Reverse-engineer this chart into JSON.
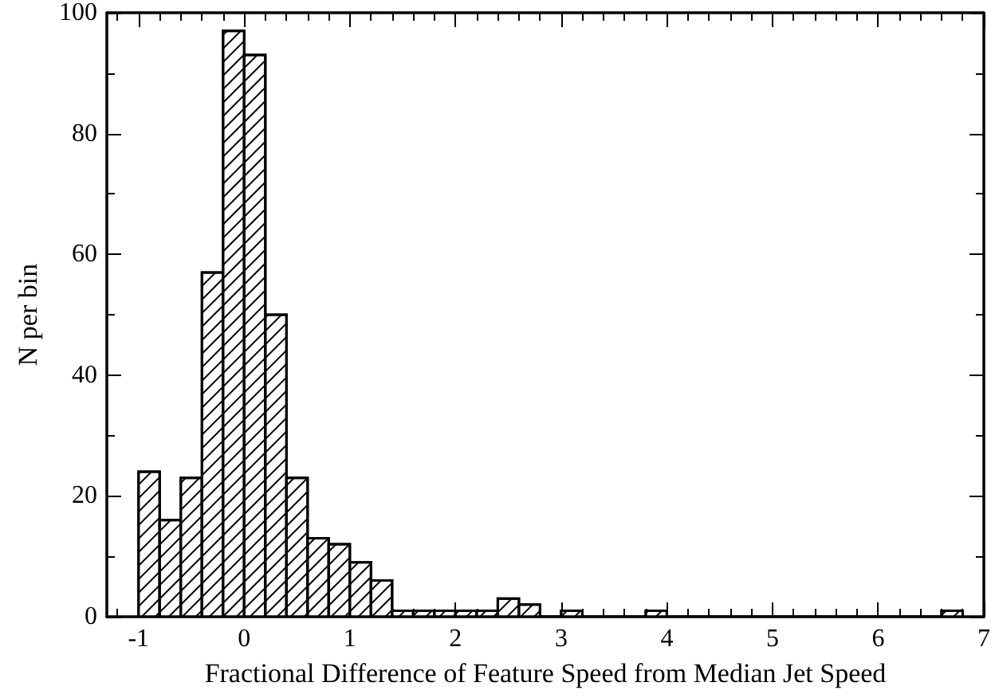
{
  "chart_data": {
    "type": "histogram",
    "xlabel": "Fractional Difference of Feature Speed from Median Jet Speed",
    "ylabel": "N per bin",
    "color": "#000000",
    "bins": [
      -1,
      -0.8,
      -0.6,
      -0.4,
      -0.2,
      0,
      0.2,
      0.4,
      0.6,
      0.8,
      1,
      1.2,
      1.4,
      1.6,
      1.8,
      2,
      2.2,
      2.4,
      2.6,
      2.8,
      3,
      3.2,
      3.4,
      3.6,
      3.8,
      4,
      4.2,
      4.4,
      4.6,
      4.8,
      5,
      5.2,
      5.4,
      5.6,
      5.8,
      6,
      6.2,
      6.4,
      6.6,
      6.8
    ],
    "values": [
      24,
      16,
      23,
      57,
      97,
      93,
      50,
      23,
      13,
      12,
      9,
      6,
      1,
      1,
      1,
      1,
      1,
      3,
      2,
      0,
      1,
      0,
      0,
      0,
      1,
      0,
      0,
      0,
      0,
      0,
      0,
      0,
      0,
      0,
      0,
      0,
      0,
      0,
      1
    ],
    "xlim": [
      -1.3,
      7
    ],
    "ylim": [
      0,
      100
    ],
    "xticks": [
      {
        "value": -1.2,
        "label": null
      },
      -1,
      {
        "value": -0.8,
        "label": null
      },
      {
        "value": -0.6,
        "label": null
      },
      {
        "value": -0.4,
        "label": null
      },
      {
        "value": -0.2,
        "label": null
      },
      0,
      {
        "value": 0.2,
        "label": null
      },
      {
        "value": 0.4,
        "label": null
      },
      {
        "value": 0.6,
        "label": null
      },
      {
        "value": 0.8,
        "label": null
      },
      1,
      {
        "value": 1.2,
        "label": null
      },
      {
        "value": 1.4,
        "label": null
      },
      {
        "value": 1.6,
        "label": null
      },
      {
        "value": 1.8,
        "label": null
      },
      2,
      {
        "value": 2.2,
        "label": null
      },
      {
        "value": 2.4,
        "label": null
      },
      {
        "value": 2.6,
        "label": null
      },
      {
        "value": 2.8,
        "label": null
      },
      3,
      {
        "value": 3.2,
        "label": null
      },
      {
        "value": 3.4,
        "label": null
      },
      {
        "value": 3.6,
        "label": null
      },
      {
        "value": 3.8,
        "label": null
      },
      4,
      {
        "value": 4.2,
        "label": null
      },
      {
        "value": 4.4,
        "label": null
      },
      {
        "value": 4.6,
        "label": null
      },
      {
        "value": 4.8,
        "label": null
      },
      5,
      {
        "value": 5.2,
        "label": null
      },
      {
        "value": 5.4,
        "label": null
      },
      {
        "value": 5.6,
        "label": null
      },
      {
        "value": 5.8,
        "label": null
      },
      6,
      {
        "value": 6.2,
        "label": null
      },
      {
        "value": 6.4,
        "label": null
      },
      {
        "value": 6.6,
        "label": null
      },
      {
        "value": 6.8,
        "label": null
      },
      7
    ],
    "yticks": [
      0,
      {
        "value": 10,
        "label": null
      },
      20,
      {
        "value": 30,
        "label": null
      },
      40,
      {
        "value": 50,
        "label": null
      },
      60,
      {
        "value": 70,
        "label": null
      },
      80,
      {
        "value": 90,
        "label": null
      },
      100
    ],
    "grid": false
  }
}
